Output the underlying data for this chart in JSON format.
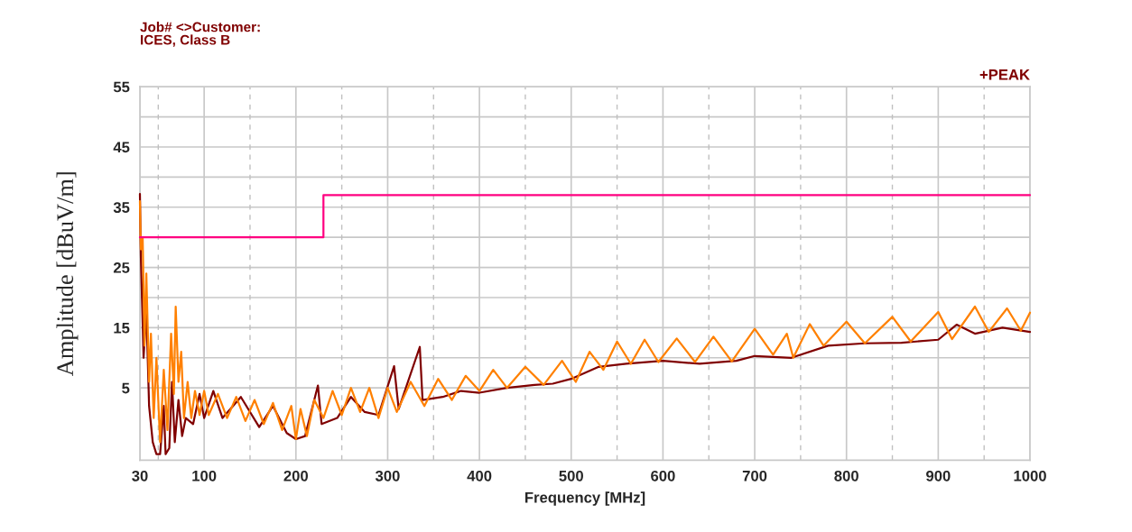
{
  "chart_data": {
    "type": "line",
    "title": "Job# <>Customer:",
    "subtitle": "ICES, Class B",
    "xlabel": "Frequency [MHz]",
    "ylabel": "Amplitude [dBuV/m]",
    "annotations": [
      "+PEAK"
    ],
    "series": [
      {
        "color": "#800000",
        "x": [
          30,
          31,
          34,
          37,
          40,
          44,
          48,
          52,
          56,
          58,
          62,
          65,
          68,
          72,
          76,
          80,
          88,
          95,
          100,
          110,
          120,
          140,
          160,
          175,
          190,
          200,
          210,
          224,
          228,
          245,
          260,
          275,
          290,
          307,
          312,
          335,
          338,
          360,
          380,
          400,
          430,
          460,
          480,
          500,
          530,
          560,
          600,
          640,
          680,
          700,
          740,
          780,
          820,
          860,
          900,
          920,
          940,
          970,
          1000
        ],
        "values": [
          37.2,
          27,
          10,
          18,
          2,
          -4,
          -6,
          -6,
          2,
          -6,
          -5,
          6,
          -4,
          3,
          -3,
          0,
          -1,
          4,
          0,
          4.5,
          0,
          3.5,
          -1.5,
          2,
          -2.5,
          -3.5,
          -3,
          5.4,
          -1,
          0,
          3.5,
          1,
          0.5,
          8.6,
          1.5,
          11.8,
          3,
          3.5,
          4.5,
          4.2,
          5,
          5.5,
          5.7,
          6.5,
          8.5,
          9,
          9.5,
          9,
          9.5,
          10.3,
          10,
          12,
          12.4,
          12.5,
          13,
          15.5,
          14,
          15,
          14.3
        ]
      },
      {
        "color": "#ff8000",
        "x": [
          30,
          31,
          33,
          35,
          37,
          40,
          42,
          45,
          48,
          52,
          56,
          60,
          64,
          67,
          69,
          72,
          75,
          78,
          82,
          86,
          90,
          95,
          100,
          105,
          115,
          125,
          135,
          145,
          155,
          165,
          175,
          185,
          195,
          200,
          205,
          212,
          220,
          230,
          240,
          250,
          260,
          270,
          280,
          290,
          300,
          310,
          325,
          340,
          355,
          370,
          385,
          400,
          415,
          430,
          450,
          470,
          490,
          505,
          520,
          535,
          550,
          565,
          580,
          595,
          615,
          635,
          655,
          675,
          700,
          720,
          735,
          742,
          760,
          775,
          800,
          820,
          850,
          870,
          900,
          915,
          940,
          955,
          975,
          990,
          1000
        ],
        "values": [
          36,
          28,
          30,
          12,
          24,
          6,
          14,
          0,
          10,
          -4,
          8,
          -2,
          14,
          4,
          18.5,
          6,
          11,
          0,
          6,
          0,
          4.5,
          0.5,
          4.5,
          0.5,
          4,
          0,
          3.5,
          -0.5,
          3,
          -1,
          2.5,
          -2,
          2,
          -3.5,
          1.5,
          -3,
          3,
          0,
          4.5,
          0.5,
          5,
          1,
          5,
          0,
          5,
          1,
          6,
          2,
          6.5,
          3,
          7,
          4.5,
          8,
          5,
          8.5,
          5.5,
          9.5,
          6,
          11,
          8,
          12.7,
          9,
          13,
          9.3,
          13.2,
          9.3,
          13.5,
          9.4,
          14.8,
          10.5,
          14,
          10,
          15.6,
          12,
          16,
          12.4,
          16.8,
          12.7,
          17.6,
          13.1,
          18.5,
          14.3,
          18.2,
          14.5,
          17.5
        ]
      },
      {
        "color": "#ff0080",
        "x": [
          30,
          230,
          230,
          1000
        ],
        "values": [
          30,
          30,
          37,
          37
        ]
      }
    ],
    "xlim": [
      30,
      1000
    ],
    "ylim": [
      -7,
      55
    ],
    "xticks": [
      30,
      100,
      200,
      300,
      400,
      500,
      600,
      700,
      800,
      900,
      1000
    ],
    "yticks": [
      5,
      {
        "value": 10,
        "label": null
      },
      15,
      {
        "value": 20,
        "label": null
      },
      25,
      {
        "value": 30,
        "label": null
      },
      35,
      {
        "value": 40,
        "label": null
      },
      45,
      {
        "value": 50,
        "label": null
      },
      55
    ],
    "ref_lines": [
      {
        "axis": "x",
        "value": 50,
        "color": "#c0c0c0",
        "line_style": "dashed"
      },
      {
        "axis": "x",
        "value": 150,
        "color": "#c0c0c0",
        "line_style": "dashed"
      },
      {
        "axis": "x",
        "value": 250,
        "color": "#c0c0c0",
        "line_style": "dashed"
      },
      {
        "axis": "x",
        "value": 350,
        "color": "#c0c0c0",
        "line_style": "dashed"
      },
      {
        "axis": "x",
        "value": 450,
        "color": "#c0c0c0",
        "line_style": "dashed"
      },
      {
        "axis": "x",
        "value": 550,
        "color": "#c0c0c0",
        "line_style": "dashed"
      },
      {
        "axis": "x",
        "value": 650,
        "color": "#c0c0c0",
        "line_style": "dashed"
      },
      {
        "axis": "x",
        "value": 750,
        "color": "#c0c0c0",
        "line_style": "dashed"
      },
      {
        "axis": "x",
        "value": 850,
        "color": "#c0c0c0",
        "line_style": "dashed"
      },
      {
        "axis": "x",
        "value": 950,
        "color": "#c0c0c0",
        "line_style": "dashed"
      }
    ],
    "grid": true
  }
}
